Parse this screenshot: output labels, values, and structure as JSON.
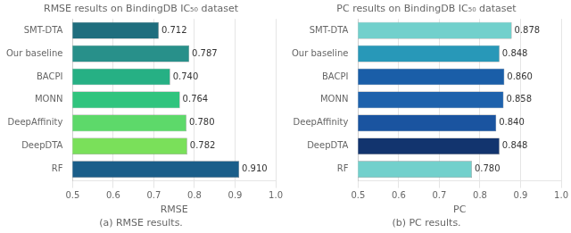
{
  "chart_data": [
    {
      "type": "bar",
      "orientation": "horizontal",
      "title": "RMSE results on BindingDB IC₅₀ dataset",
      "subtitle": "(a) RMSE results.",
      "xlabel": "RMSE",
      "categories": [
        "SMT-DTA",
        "Our baseline",
        "BACPI",
        "MONN",
        "DeepAffinity",
        "DeepDTA",
        "RF"
      ],
      "values": [
        0.712,
        0.787,
        0.74,
        0.764,
        0.78,
        0.782,
        0.91
      ],
      "value_labels": [
        "0.712",
        "0.787",
        "0.740",
        "0.764",
        "0.780",
        "0.782",
        "0.910"
      ],
      "colors": [
        "#1f6e7e",
        "#28908a",
        "#26b084",
        "#30c47e",
        "#5dd96a",
        "#7ae05a",
        "#1a5e8a"
      ],
      "xlim": [
        0.5,
        1.0
      ],
      "xticks": [
        0.5,
        0.6,
        0.7,
        0.8,
        0.9,
        {
          "value": 1.0,
          "label": "1.0"
        }
      ],
      "grid": true,
      "data_labels": true
    },
    {
      "type": "bar",
      "orientation": "horizontal",
      "title": "PC results on BindingDB IC₅₀ dataset",
      "subtitle": "(b) PC results.",
      "xlabel": "PC",
      "categories": [
        "SMT-DTA",
        "Our baseline",
        "BACPI",
        "MONN",
        "DeepAffinity",
        "DeepDTA",
        "RF"
      ],
      "values": [
        0.878,
        0.848,
        0.86,
        0.858,
        0.84,
        0.848,
        0.78
      ],
      "value_labels": [
        "0.878",
        "0.848",
        "0.860",
        "0.858",
        "0.840",
        "0.848",
        "0.780"
      ],
      "colors": [
        "#72d0cc",
        "#2898b8",
        "#1a5ea8",
        "#1e62ac",
        "#1a54a0",
        "#12346e",
        "#72d0cc"
      ],
      "xlim": [
        0.5,
        1.0
      ],
      "xticks": [
        0.5,
        0.6,
        0.7,
        0.8,
        0.9,
        {
          "value": 1.0,
          "label": "1.0"
        }
      ],
      "grid": true,
      "data_labels": true
    }
  ]
}
